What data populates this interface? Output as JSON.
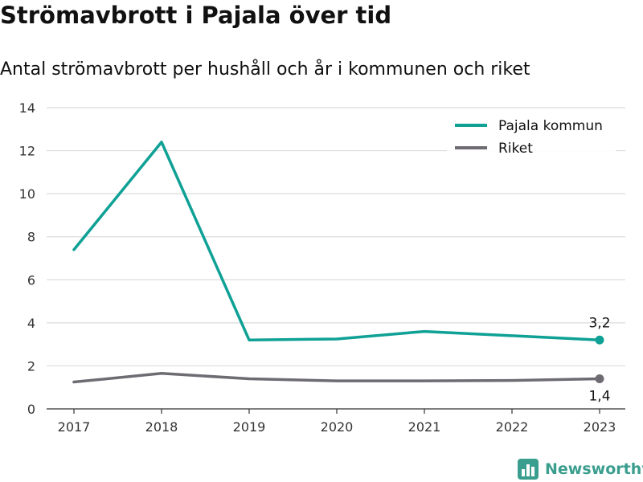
{
  "title": "Strömavbrott i Pajala över tid",
  "subtitle": "Antal strömavbrott per hushåll och år i kommunen och riket",
  "brand": {
    "name": "Newsworthy",
    "color": "#3a9e8e",
    "icon": "bar-chart-logo-icon"
  },
  "chart_data": {
    "type": "line",
    "categories": [
      "2017",
      "2018",
      "2019",
      "2020",
      "2021",
      "2022",
      "2023"
    ],
    "ylim": [
      0,
      14
    ],
    "yticks": [
      0,
      2,
      4,
      6,
      8,
      10,
      12,
      14
    ],
    "grid": true,
    "legend_position": "top-right",
    "series": [
      {
        "name": "Pajala kommun",
        "color": "#0fa195",
        "values": [
          7.4,
          12.4,
          3.2,
          3.25,
          3.6,
          3.4,
          3.2
        ],
        "end_label": "3,2"
      },
      {
        "name": "Riket",
        "color": "#6e6b73",
        "values": [
          1.25,
          1.65,
          1.4,
          1.3,
          1.3,
          1.32,
          1.4
        ],
        "end_label": "1,4"
      }
    ]
  }
}
